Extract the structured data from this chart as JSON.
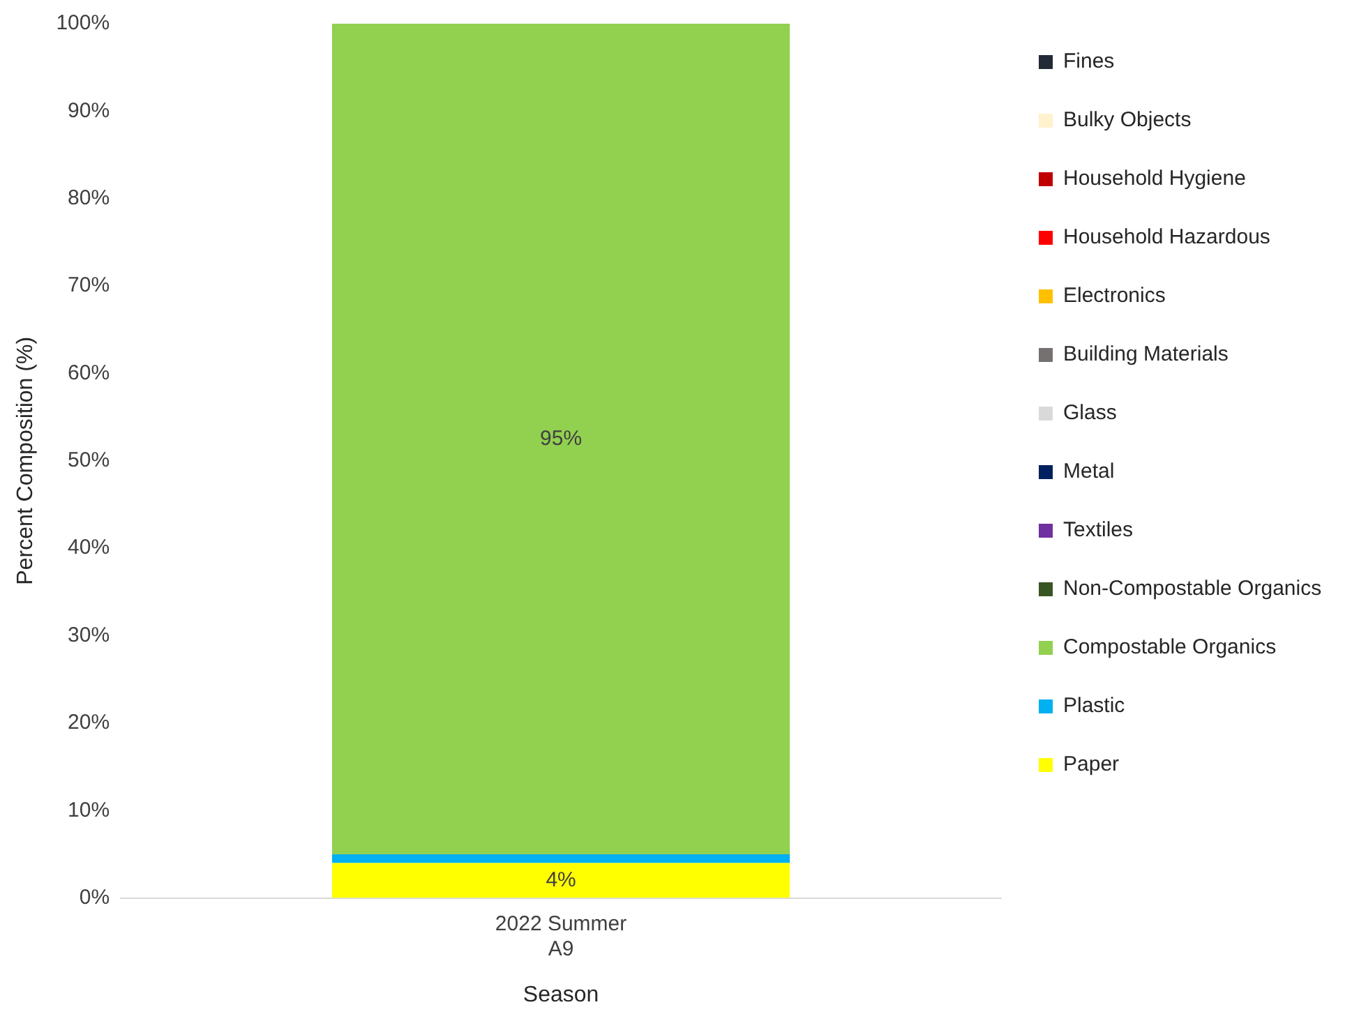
{
  "chart_data": {
    "type": "bar",
    "stacked": true,
    "xlabel": "Season",
    "ylabel": "Percent Composition (%)",
    "categories": [
      "2022 Summer A9"
    ],
    "ylim": [
      0,
      100
    ],
    "yticks": [
      {
        "value": 0,
        "label": "0%"
      },
      {
        "value": 10,
        "label": "10%"
      },
      {
        "value": 20,
        "label": "20%"
      },
      {
        "value": 30,
        "label": "30%"
      },
      {
        "value": 40,
        "label": "40%"
      },
      {
        "value": 50,
        "label": "50%"
      },
      {
        "value": 60,
        "label": "60%"
      },
      {
        "value": 70,
        "label": "70%"
      },
      {
        "value": 80,
        "label": "80%"
      },
      {
        "value": 90,
        "label": "90%"
      },
      {
        "value": 100,
        "label": "100%"
      }
    ],
    "grid": false,
    "legend": "right",
    "series": [
      {
        "name": "Paper",
        "color": "#ffff00",
        "values": [
          4
        ],
        "value_labels": [
          "4%"
        ]
      },
      {
        "name": "Plastic",
        "color": "#00b0f0",
        "values": [
          1
        ]
      },
      {
        "name": "Compostable Organics",
        "color": "#92d050",
        "values": [
          95
        ],
        "value_labels": [
          "95%"
        ]
      },
      {
        "name": "Non-Compostable Organics",
        "color": "#375623",
        "values": [
          0
        ]
      },
      {
        "name": "Textiles",
        "color": "#7030a0",
        "values": [
          0
        ]
      },
      {
        "name": "Metal",
        "color": "#002060",
        "values": [
          0
        ]
      },
      {
        "name": "Glass",
        "color": "#d9d9d9",
        "values": [
          0
        ]
      },
      {
        "name": "Building Materials",
        "color": "#767171",
        "values": [
          0
        ]
      },
      {
        "name": "Electronics",
        "color": "#ffc000",
        "values": [
          0
        ]
      },
      {
        "name": "Household Hazardous",
        "color": "#ff0000",
        "values": [
          0
        ]
      },
      {
        "name": "Household Hygiene",
        "color": "#c00000",
        "values": [
          0
        ]
      },
      {
        "name": "Bulky Objects",
        "color": "#fff2cc",
        "values": [
          0
        ]
      },
      {
        "name": "Fines",
        "color": "#222a35",
        "values": [
          0
        ]
      }
    ]
  }
}
